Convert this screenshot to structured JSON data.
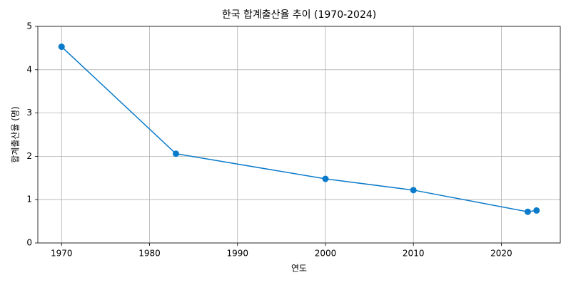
{
  "chart_data": {
    "type": "line",
    "title": "한국 합계출산율 추이 (1970-2024)",
    "x_label": "연도",
    "y_label": "합계출산율 (명)",
    "x": [
      1970,
      1983,
      2000,
      2010,
      2023,
      2024
    ],
    "values": [
      4.53,
      2.06,
      1.48,
      1.22,
      0.72,
      0.75
    ],
    "color": "#0a7bca",
    "xlim": [
      1967.3,
      2026.7
    ],
    "xticks": [
      1970,
      1980,
      1990,
      2000,
      2010,
      2020
    ],
    "ylim": [
      0,
      5
    ],
    "yticks": [
      0,
      1,
      2,
      3,
      4,
      5
    ],
    "grid": true
  }
}
